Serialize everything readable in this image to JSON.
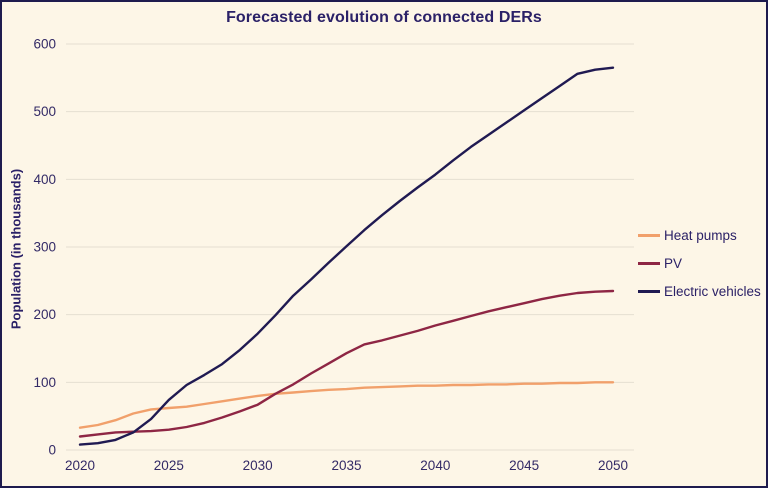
{
  "title": "Forecasted evolution of connected DERs",
  "colors": {
    "background": "#fdf6e7",
    "border": "#1e1b4e",
    "text": "#2b2167",
    "grid": "#e5dfd2"
  },
  "y_axis": {
    "title": "Population (in thousands)",
    "ticks": [
      "0",
      "100",
      "200",
      "300",
      "400",
      "500",
      "600"
    ]
  },
  "x_axis": {
    "ticks": [
      "2020",
      "2025",
      "2030",
      "2035",
      "2040",
      "2045",
      "2050"
    ]
  },
  "legend": {
    "items": [
      {
        "label": "Heat pumps",
        "color": "#f1a06b"
      },
      {
        "label": "PV",
        "color": "#8e2644"
      },
      {
        "label": "Electric vehicles",
        "color": "#201a52"
      }
    ]
  },
  "chart_data": {
    "type": "line",
    "title": "Forecasted evolution of connected DERs",
    "xlabel": "",
    "ylabel": "Population (in thousands)",
    "xlim": [
      2020,
      2050
    ],
    "ylim": [
      0,
      600
    ],
    "x_tick_step": 5,
    "y_tick_step": 100,
    "grid": true,
    "legend_position": "right",
    "x": [
      2020,
      2021,
      2022,
      2023,
      2024,
      2025,
      2026,
      2027,
      2028,
      2029,
      2030,
      2031,
      2032,
      2033,
      2034,
      2035,
      2036,
      2037,
      2038,
      2039,
      2040,
      2041,
      2042,
      2043,
      2044,
      2045,
      2046,
      2047,
      2048,
      2049,
      2050
    ],
    "series": [
      {
        "name": "Heat pumps",
        "color": "#f1a06b",
        "values": [
          33,
          37,
          44,
          54,
          60,
          62,
          64,
          68,
          72,
          76,
          80,
          83,
          85,
          87,
          89,
          90,
          92,
          93,
          94,
          95,
          95,
          96,
          96,
          97,
          97,
          98,
          98,
          99,
          99,
          100,
          100
        ]
      },
      {
        "name": "PV",
        "color": "#8e2644",
        "values": [
          20,
          23,
          26,
          27,
          28,
          30,
          34,
          40,
          48,
          57,
          67,
          83,
          97,
          113,
          128,
          143,
          156,
          162,
          169,
          176,
          184,
          191,
          198,
          205,
          211,
          217,
          223,
          228,
          232,
          234,
          235
        ]
      },
      {
        "name": "Electric vehicles",
        "color": "#201a52",
        "values": [
          8,
          10,
          15,
          26,
          46,
          74,
          96,
          111,
          127,
          148,
          172,
          199,
          228,
          252,
          277,
          301,
          325,
          347,
          368,
          388,
          407,
          428,
          448,
          466,
          484,
          502,
          520,
          538,
          556,
          562,
          565
        ]
      }
    ]
  }
}
